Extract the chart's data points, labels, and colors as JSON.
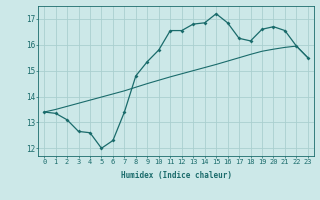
{
  "xlabel": "Humidex (Indice chaleur)",
  "background_color": "#cce8e8",
  "grid_color": "#aacfcf",
  "line_color": "#1a6b6b",
  "xlim": [
    -0.5,
    23.5
  ],
  "ylim": [
    11.7,
    17.5
  ],
  "yticks": [
    12,
    13,
    14,
    15,
    16,
    17
  ],
  "xticks": [
    0,
    1,
    2,
    3,
    4,
    5,
    6,
    7,
    8,
    9,
    10,
    11,
    12,
    13,
    14,
    15,
    16,
    17,
    18,
    19,
    20,
    21,
    22,
    23
  ],
  "line1_x": [
    0,
    1,
    2,
    3,
    4,
    5,
    6,
    7,
    8,
    9,
    10,
    11,
    12,
    13,
    14,
    15,
    16,
    17,
    18,
    19,
    20,
    21,
    22,
    23
  ],
  "line1_y": [
    13.4,
    13.35,
    13.1,
    12.65,
    12.6,
    12.0,
    12.3,
    13.4,
    14.8,
    15.35,
    15.8,
    16.55,
    16.55,
    16.8,
    16.85,
    17.2,
    16.85,
    16.25,
    16.15,
    16.6,
    16.7,
    16.55,
    15.95,
    15.5
  ],
  "line2_x": [
    0,
    1,
    2,
    3,
    4,
    5,
    6,
    7,
    8,
    9,
    10,
    11,
    12,
    13,
    14,
    15,
    16,
    17,
    18,
    19,
    20,
    21,
    22,
    23
  ],
  "line2_y": [
    13.4,
    13.5,
    13.62,
    13.74,
    13.86,
    13.98,
    14.1,
    14.22,
    14.36,
    14.5,
    14.63,
    14.76,
    14.88,
    15.0,
    15.12,
    15.24,
    15.37,
    15.5,
    15.63,
    15.75,
    15.83,
    15.9,
    15.95,
    15.5
  ],
  "xlabel_fontsize": 5.5,
  "tick_fontsize": 5.0,
  "ytick_fontsize": 5.5
}
